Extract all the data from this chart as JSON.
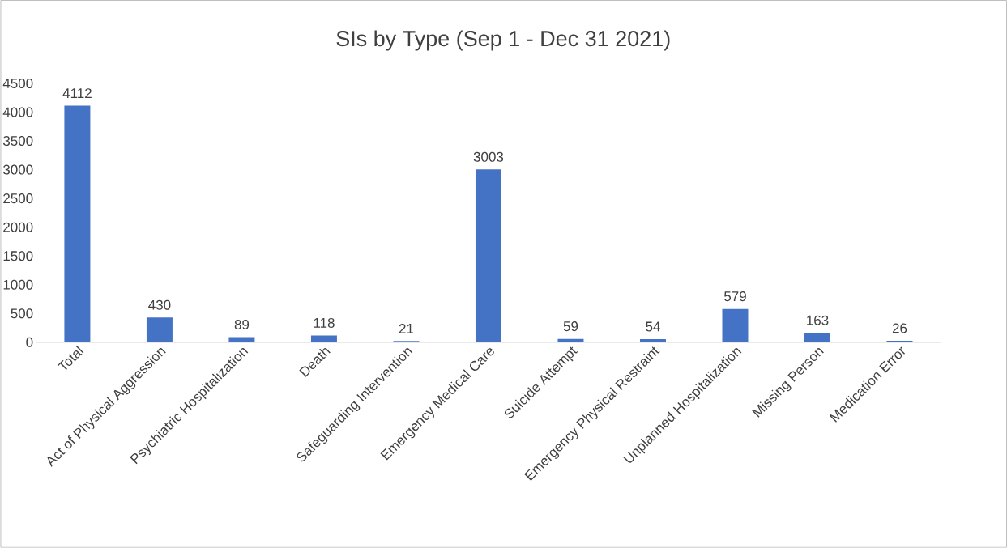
{
  "chart_data": {
    "type": "bar",
    "title": "SIs by Type (Sep 1 - Dec 31 2021)",
    "categories": [
      "Total",
      "Act of Physical Aggression",
      "Psychiatric Hospitalization",
      "Death",
      "Safeguarding Intervention",
      "Emergency Medical Care",
      "Suicide Attempt",
      "Emergency Physical Restraint",
      "Unplanned Hospitalization",
      "Missing Person",
      "Medication Error"
    ],
    "values": [
      4112,
      430,
      89,
      118,
      21,
      3003,
      59,
      54,
      579,
      163,
      26
    ],
    "color": "#4472c4",
    "ylim": [
      0,
      4500
    ],
    "yticks": [
      0,
      500,
      1000,
      1500,
      2000,
      2500,
      3000,
      3500,
      4000,
      4500
    ],
    "data_labels": true
  }
}
